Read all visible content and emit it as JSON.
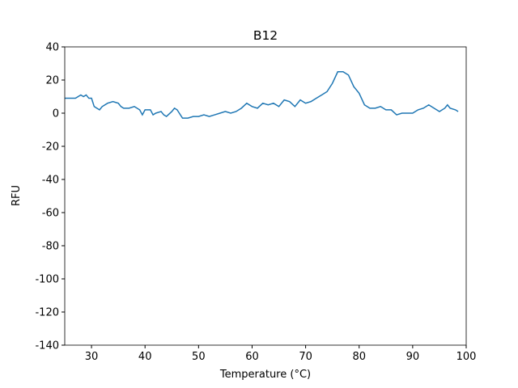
{
  "chart_data": {
    "type": "line",
    "title": "B12",
    "x_label": "Temperature (°C)",
    "y_label": "RFU",
    "x": [
      25,
      26,
      27,
      28,
      28.5,
      29,
      29.5,
      30,
      30.5,
      31,
      31.5,
      32,
      33,
      34,
      35,
      35.5,
      36,
      37,
      38,
      39,
      39.5,
      40,
      41,
      41.5,
      42,
      43,
      43.5,
      44,
      45,
      45.5,
      46,
      47,
      48,
      49,
      50,
      51,
      52,
      53,
      54,
      55,
      56,
      57,
      58,
      59,
      60,
      61,
      62,
      63,
      64,
      65,
      66,
      67,
      68,
      69,
      70,
      71,
      72,
      73,
      74,
      75,
      76,
      77,
      78,
      79,
      80,
      81,
      82,
      83,
      84,
      85,
      86,
      87,
      88,
      89,
      90,
      91,
      92,
      93,
      94,
      95,
      96,
      96.5,
      97,
      98,
      98.5
    ],
    "series": [
      {
        "name": "B12",
        "color": "#1f77b4",
        "values": [
          9,
          9,
          9,
          11,
          10,
          11,
          9,
          9,
          4,
          3,
          2,
          4,
          6,
          7,
          6,
          4,
          3,
          3,
          4,
          2,
          -1,
          2,
          2,
          -1,
          0,
          1,
          -1,
          -2,
          1,
          3,
          2,
          -3,
          -3,
          -2,
          -2,
          -1,
          -2,
          -1,
          0,
          1,
          0,
          1,
          3,
          6,
          4,
          3,
          6,
          5,
          6,
          4,
          8,
          7,
          4,
          8,
          6,
          7,
          9,
          11,
          13,
          18,
          25,
          25,
          23,
          16,
          12,
          5,
          3,
          3,
          4,
          2,
          2,
          -1,
          0,
          0,
          0,
          2,
          3,
          5,
          3,
          1,
          3,
          5,
          3,
          2,
          1
        ]
      }
    ],
    "xlim": [
      25,
      100
    ],
    "ylim": [
      -140,
      40
    ],
    "xticks": [
      30,
      40,
      50,
      60,
      70,
      80,
      90,
      100
    ],
    "yticks": [
      -140,
      -120,
      -100,
      -80,
      -60,
      -40,
      -20,
      0,
      20,
      40
    ]
  }
}
